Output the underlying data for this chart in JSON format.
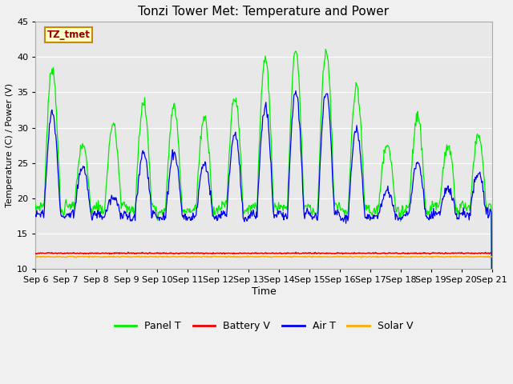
{
  "title": "Tonzi Tower Met: Temperature and Power",
  "xlabel": "Time",
  "ylabel": "Temperature (C) / Power (V)",
  "ylim": [
    10,
    45
  ],
  "days": 15,
  "x_tick_labels": [
    "Sep 6",
    "Sep 7",
    "Sep 8",
    "Sep 9",
    "Sep 10",
    "Sep 11",
    "Sep 12",
    "Sep 13",
    "Sep 14",
    "Sep 15",
    "Sep 16",
    "Sep 17",
    "Sep 18",
    "Sep 19",
    "Sep 20",
    "Sep 21"
  ],
  "annotation_text": "TZ_tmet",
  "annotation_bg": "#ffffcc",
  "annotation_border": "#cc8800",
  "annotation_text_color": "#990000",
  "fig_bg_color": "#f0f0f0",
  "axes_bg_color": "#e8e8e8",
  "grid_color": "#ffffff",
  "panel_T_color": "#00ee00",
  "battery_V_color": "#ee0000",
  "air_T_color": "#0000ee",
  "solar_V_color": "#ffaa00",
  "n_points_per_day": 48,
  "battery_V_base": 12.2,
  "solar_V_base": 11.7,
  "panel_day_peaks": [
    38.5,
    27.5,
    30.5,
    33.5,
    33.0,
    31.5,
    34.5,
    40.0,
    41.0,
    41.0,
    35.5,
    28.0,
    31.5,
    27.5,
    29.0
  ],
  "air_day_peaks": [
    32.0,
    24.5,
    20.0,
    26.5,
    26.5,
    25.0,
    29.0,
    33.0,
    35.0,
    35.0,
    29.5,
    21.0,
    25.0,
    21.5,
    23.5
  ],
  "night_trough": 18.5,
  "air_night_trough": 17.5
}
